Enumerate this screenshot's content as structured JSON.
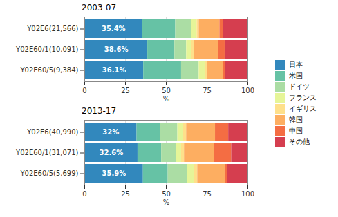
{
  "chart_data": [
    {
      "type": "bar",
      "title": "2003-07",
      "orientation": "horizontal",
      "stacked": true,
      "categories": [
        "Y02E6(21,566)",
        "Y02E60/1(10,091)",
        "Y02E60/5(9,384)"
      ],
      "xlabel": "%",
      "xlim": [
        0,
        100
      ],
      "xticks": [
        0,
        25,
        50,
        75,
        100
      ],
      "grid": true,
      "legend": "right",
      "data_labels": true,
      "series": [
        {
          "name": "日本",
          "color": "#3288bd",
          "values": [
            35.4,
            38.6,
            36.1
          ],
          "value_labels": [
            "35.4%",
            "38.6%",
            "36.1%"
          ]
        },
        {
          "name": "米国",
          "color": "#66c2a5",
          "values": [
            20.3,
            16.6,
            23.2
          ]
        },
        {
          "name": "ドイツ",
          "color": "#abdda4",
          "values": [
            9.9,
            7.2,
            10.8
          ]
        },
        {
          "name": "フランス",
          "color": "#e6f598",
          "values": [
            3.2,
            3.2,
            3.7
          ]
        },
        {
          "name": "イギリス",
          "color": "#fee08b",
          "values": [
            1.3,
            1.4,
            1.3
          ]
        },
        {
          "name": "韓国",
          "color": "#fdae61",
          "values": [
            12.7,
            14.9,
            9.9
          ]
        },
        {
          "name": "中国",
          "color": "#f46d43",
          "values": [
            2.2,
            4.1,
            1.4
          ]
        },
        {
          "name": "その他",
          "color": "#d53e4f",
          "values": [
            15.0,
            14.0,
            13.6
          ]
        }
      ]
    },
    {
      "type": "bar",
      "title": "2013-17",
      "orientation": "horizontal",
      "stacked": true,
      "categories": [
        "Y02E6(40,990)",
        "Y02E60/1(31,071)",
        "Y02E60/5(5,699)"
      ],
      "xlabel": "%",
      "xlim": [
        0,
        100
      ],
      "xticks": [
        0,
        25,
        50,
        75,
        100
      ],
      "grid": true,
      "legend": "right",
      "data_labels": true,
      "series": [
        {
          "name": "日本",
          "color": "#3288bd",
          "values": [
            32,
            32.6,
            35.9
          ],
          "value_labels": [
            "32%",
            "32.6%",
            "35.9%"
          ]
        },
        {
          "name": "米国",
          "color": "#66c2a5",
          "values": [
            14.6,
            14.5,
            15.2
          ]
        },
        {
          "name": "ドイツ",
          "color": "#abdda4",
          "values": [
            10.4,
            9.0,
            11.8
          ]
        },
        {
          "name": "フランス",
          "color": "#e6f598",
          "values": [
            3.6,
            3.2,
            4.1
          ]
        },
        {
          "name": "イギリス",
          "color": "#fee08b",
          "values": [
            1.8,
            1.8,
            2.2
          ]
        },
        {
          "name": "韓国",
          "color": "#fdae61",
          "values": [
            17.7,
            18.5,
            16.8
          ]
        },
        {
          "name": "中国",
          "color": "#f46d43",
          "values": [
            8.1,
            10.4,
            1.3
          ]
        },
        {
          "name": "その他",
          "color": "#d53e4f",
          "values": [
            11.8,
            10.0,
            12.7
          ]
        }
      ]
    }
  ]
}
